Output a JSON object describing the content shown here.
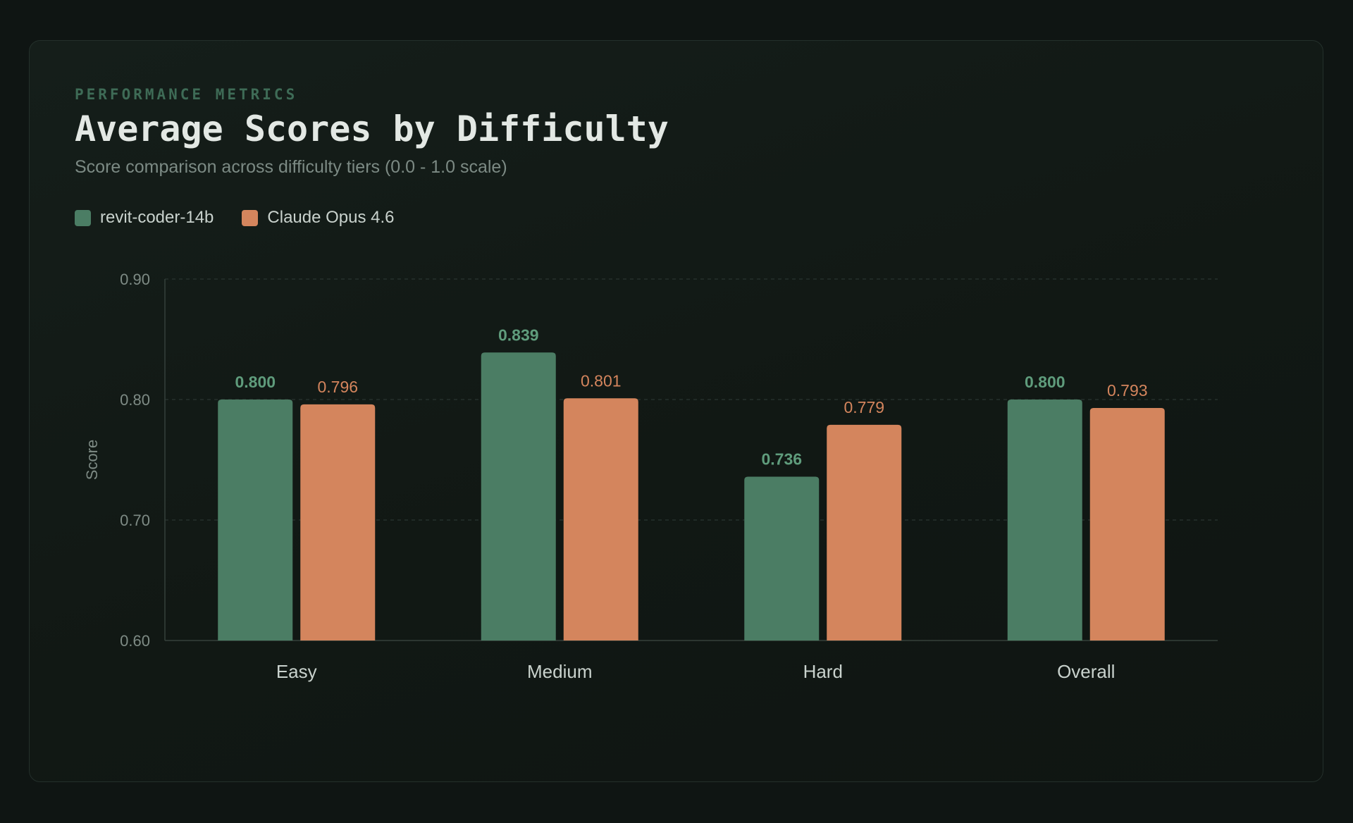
{
  "header": {
    "kicker": "PERFORMANCE METRICS",
    "title": "Average Scores by Difficulty",
    "subtitle": "Score comparison across difficulty tiers (0.0 - 1.0 scale)"
  },
  "colors": {
    "series1": "#4b7d64",
    "series2": "#d4855d",
    "label1": "#5f9c7c",
    "label2": "#d4855d",
    "grid": "#2a3531",
    "axis": "#35403b",
    "tick": "#7e8b85",
    "category": "#c9d2cd"
  },
  "chart_data": {
    "type": "bar",
    "title": "Average Scores by Difficulty",
    "subtitle": "Score comparison across difficulty tiers (0.0 - 1.0 scale)",
    "xlabel": "",
    "ylabel": "Score",
    "ylim": [
      0.6,
      0.9
    ],
    "yticks": [
      "0.60",
      "0.70",
      "0.80",
      "0.90"
    ],
    "grid": true,
    "legend_position": "top-left",
    "categories": [
      "Easy",
      "Medium",
      "Hard",
      "Overall"
    ],
    "series": [
      {
        "name": "revit-coder-14b",
        "values": [
          0.8,
          0.839,
          0.736,
          0.8
        ],
        "labels": [
          "0.800",
          "0.839",
          "0.736",
          "0.800"
        ]
      },
      {
        "name": "Claude Opus 4.6",
        "values": [
          0.796,
          0.801,
          0.779,
          0.793
        ],
        "labels": [
          "0.796",
          "0.801",
          "0.779",
          "0.793"
        ]
      }
    ]
  }
}
